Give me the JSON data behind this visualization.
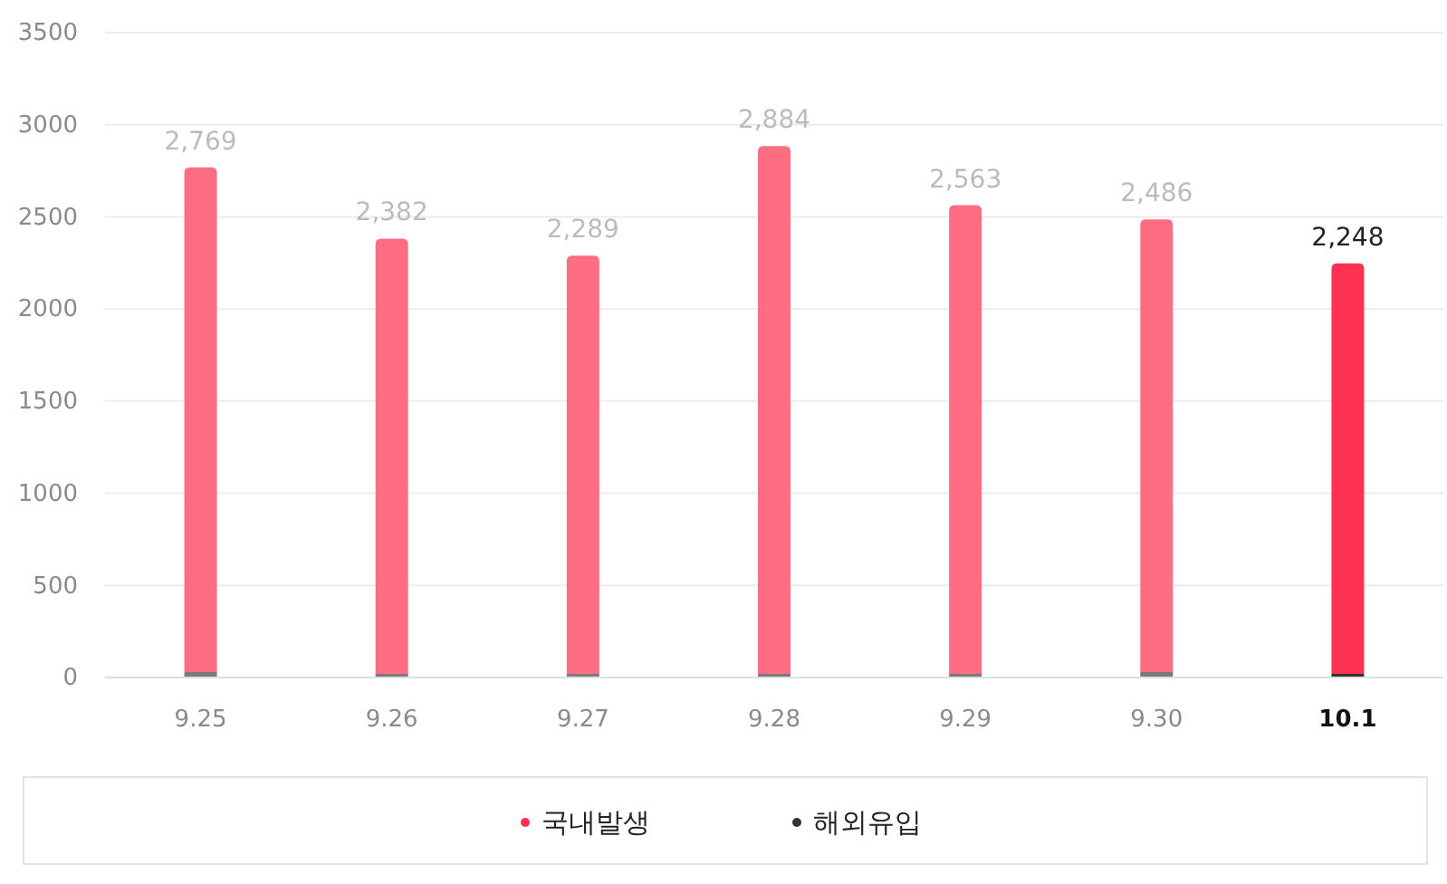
{
  "chart_data": {
    "type": "bar",
    "stacked": true,
    "categories": [
      "9.25",
      "9.26",
      "9.27",
      "9.28",
      "9.29",
      "9.30",
      "10.1"
    ],
    "series": [
      {
        "name": "해외유입",
        "colors": [
          "#7a7a7a",
          "#7a7a7a",
          "#7a7a7a",
          "#7a7a7a",
          "#7a7a7a",
          "#7a7a7a",
          "#333333"
        ],
        "values": [
          30,
          20,
          20,
          20,
          20,
          30,
          20
        ]
      },
      {
        "name": "국내발생",
        "colors": [
          "#ff6d82",
          "#ff6d82",
          "#ff6d82",
          "#ff6d82",
          "#ff6d82",
          "#ff6d82",
          "#ff3152"
        ],
        "values": [
          2739,
          2362,
          2269,
          2864,
          2543,
          2456,
          2228
        ]
      }
    ],
    "totals": [
      "2,769",
      "2,382",
      "2,289",
      "2,884",
      "2,563",
      "2,486",
      "2,248"
    ],
    "ylim": [
      0,
      3500
    ],
    "yticks": [
      0,
      500,
      1000,
      1500,
      2000,
      2500,
      3000,
      3500
    ],
    "grid": "y",
    "legend": "bottom"
  }
}
